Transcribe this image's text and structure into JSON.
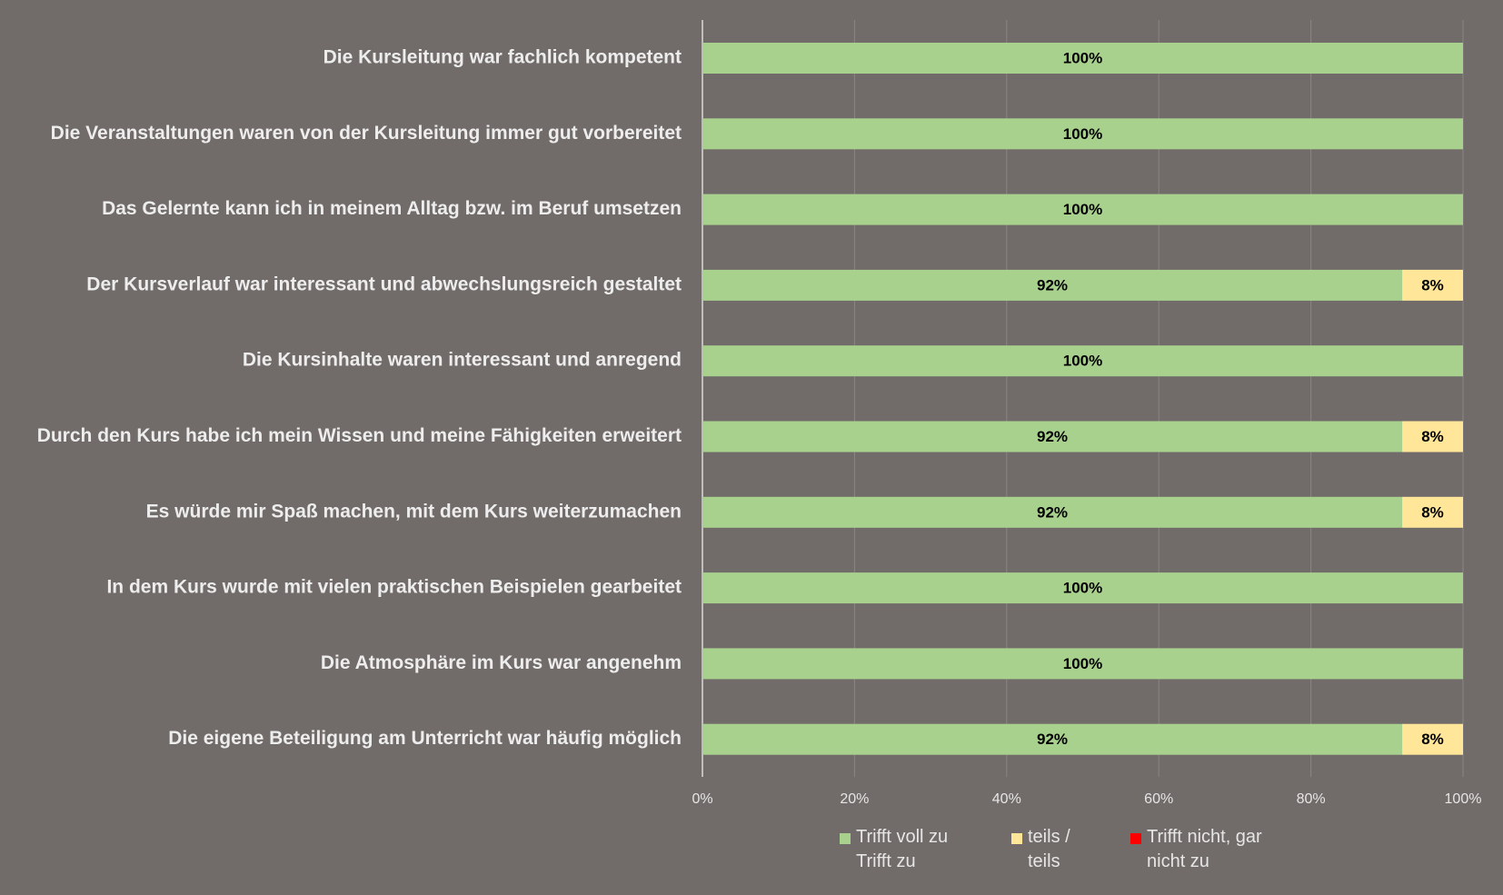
{
  "chart_data": {
    "type": "stacked-barh",
    "categories": [
      "Die Kursleitung war fachlich kompetent",
      "Die Veranstaltungen waren von der Kursleitung immer gut vorbereitet",
      "Das Gelernte kann ich in meinem Alltag bzw. im Beruf umsetzen",
      "Der Kursverlauf war interessant und abwechslungsreich gestaltet",
      "Die Kursinhalte waren interessant und anregend",
      "Durch den Kurs habe ich mein Wissen und meine Fähigkeiten erweitert",
      "Es würde mir Spaß machen, mit dem Kurs weiterzumachen",
      "In dem Kurs wurde mit vielen praktischen Beispielen gearbeitet",
      "Die Atmosphäre im Kurs war angenehm",
      "Die eigene Beteiligung am Unterricht war häufig möglich"
    ],
    "series": [
      {
        "name": "Trifft voll zu Trifft zu",
        "color": "#a9d18e",
        "values": [
          100,
          100,
          100,
          92,
          100,
          92,
          92,
          100,
          100,
          92
        ],
        "value_labels": [
          "100%",
          "100%",
          "100%",
          "92%",
          "100%",
          "92%",
          "92%",
          "100%",
          "100%",
          "92%"
        ]
      },
      {
        "name": "teils / teils",
        "color": "#ffe699",
        "values": [
          null,
          null,
          null,
          8,
          null,
          8,
          8,
          null,
          null,
          8
        ],
        "value_labels": [
          null,
          null,
          null,
          "8%",
          null,
          "8%",
          "8%",
          null,
          null,
          "8%"
        ]
      },
      {
        "name": "Trifft nicht, gar nicht zu",
        "color": "#ff0000",
        "values": [
          null,
          null,
          null,
          null,
          null,
          null,
          null,
          null,
          null,
          null
        ]
      }
    ],
    "xlim": [
      0,
      100
    ],
    "xticks": [
      {
        "value": 0,
        "label": "0%"
      },
      {
        "value": 20,
        "label": "20%"
      },
      {
        "value": 40,
        "label": "40%"
      },
      {
        "value": 60,
        "label": "60%"
      },
      {
        "value": 80,
        "label": "80%"
      },
      {
        "value": 100,
        "label": "100%"
      }
    ],
    "grid": true,
    "legend": "bottom"
  }
}
